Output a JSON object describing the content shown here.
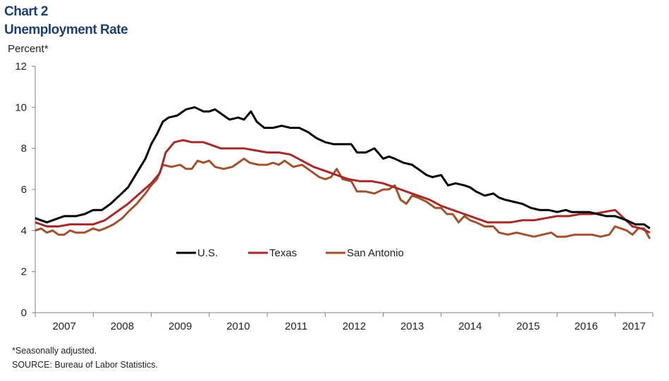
{
  "header": {
    "chart_label": "Chart 2",
    "chart_title": "Unemployment Rate"
  },
  "footer": {
    "note": "*Seasonally adjusted.",
    "source": "SOURCE: Bureau of Labor Statistics."
  },
  "chart_data": {
    "type": "line",
    "title": "Unemployment Rate",
    "ylabel": "Percent*",
    "xlabel": "",
    "ylim": [
      0,
      12
    ],
    "yticks": [
      0,
      2,
      4,
      6,
      8,
      10,
      12
    ],
    "xlim": [
      2007.0,
      2017.65
    ],
    "xtick_labels": [
      "2007",
      "2008",
      "2009",
      "2010",
      "2011",
      "2012",
      "2013",
      "2014",
      "2015",
      "2016",
      "2017"
    ],
    "grid": false,
    "legend_position": "center",
    "series": [
      {
        "name": "U.S.",
        "color": "#000000",
        "points": [
          [
            2007.0,
            4.6
          ],
          [
            2007.1,
            4.5
          ],
          [
            2007.2,
            4.4
          ],
          [
            2007.3,
            4.5
          ],
          [
            2007.4,
            4.6
          ],
          [
            2007.5,
            4.7
          ],
          [
            2007.6,
            4.7
          ],
          [
            2007.7,
            4.7
          ],
          [
            2007.85,
            4.8
          ],
          [
            2008.0,
            5.0
          ],
          [
            2008.15,
            5.0
          ],
          [
            2008.3,
            5.3
          ],
          [
            2008.45,
            5.7
          ],
          [
            2008.6,
            6.1
          ],
          [
            2008.75,
            6.8
          ],
          [
            2008.9,
            7.5
          ],
          [
            2009.0,
            8.2
          ],
          [
            2009.1,
            8.7
          ],
          [
            2009.2,
            9.3
          ],
          [
            2009.3,
            9.5
          ],
          [
            2009.45,
            9.6
          ],
          [
            2009.6,
            9.9
          ],
          [
            2009.75,
            10.0
          ],
          [
            2009.9,
            9.8
          ],
          [
            2010.0,
            9.8
          ],
          [
            2010.1,
            9.9
          ],
          [
            2010.2,
            9.7
          ],
          [
            2010.35,
            9.4
          ],
          [
            2010.5,
            9.5
          ],
          [
            2010.6,
            9.4
          ],
          [
            2010.72,
            9.8
          ],
          [
            2010.82,
            9.3
          ],
          [
            2010.95,
            9.0
          ],
          [
            2011.1,
            9.0
          ],
          [
            2011.25,
            9.1
          ],
          [
            2011.4,
            9.0
          ],
          [
            2011.55,
            9.0
          ],
          [
            2011.7,
            8.8
          ],
          [
            2011.85,
            8.5
          ],
          [
            2012.0,
            8.3
          ],
          [
            2012.15,
            8.2
          ],
          [
            2012.3,
            8.2
          ],
          [
            2012.45,
            8.2
          ],
          [
            2012.55,
            7.8
          ],
          [
            2012.7,
            7.8
          ],
          [
            2012.85,
            8.0
          ],
          [
            2013.0,
            7.5
          ],
          [
            2013.1,
            7.6
          ],
          [
            2013.2,
            7.5
          ],
          [
            2013.35,
            7.3
          ],
          [
            2013.5,
            7.2
          ],
          [
            2013.6,
            7.0
          ],
          [
            2013.75,
            6.7
          ],
          [
            2013.85,
            6.6
          ],
          [
            2014.0,
            6.7
          ],
          [
            2014.12,
            6.2
          ],
          [
            2014.25,
            6.3
          ],
          [
            2014.4,
            6.2
          ],
          [
            2014.5,
            6.1
          ],
          [
            2014.6,
            5.9
          ],
          [
            2014.75,
            5.7
          ],
          [
            2014.9,
            5.8
          ],
          [
            2015.0,
            5.6
          ],
          [
            2015.1,
            5.5
          ],
          [
            2015.25,
            5.4
          ],
          [
            2015.4,
            5.3
          ],
          [
            2015.55,
            5.1
          ],
          [
            2015.7,
            5.0
          ],
          [
            2015.85,
            5.0
          ],
          [
            2016.0,
            4.9
          ],
          [
            2016.15,
            5.0
          ],
          [
            2016.25,
            4.9
          ],
          [
            2016.4,
            4.9
          ],
          [
            2016.55,
            4.9
          ],
          [
            2016.7,
            4.8
          ],
          [
            2016.85,
            4.7
          ],
          [
            2017.0,
            4.7
          ],
          [
            2017.1,
            4.6
          ],
          [
            2017.2,
            4.5
          ],
          [
            2017.35,
            4.3
          ],
          [
            2017.5,
            4.3
          ],
          [
            2017.6,
            4.1
          ]
        ]
      },
      {
        "name": "Texas",
        "color": "#a52a2a",
        "points": [
          [
            2007.0,
            4.4
          ],
          [
            2007.2,
            4.2
          ],
          [
            2007.4,
            4.2
          ],
          [
            2007.6,
            4.3
          ],
          [
            2007.8,
            4.3
          ],
          [
            2008.0,
            4.3
          ],
          [
            2008.2,
            4.5
          ],
          [
            2008.4,
            4.9
          ],
          [
            2008.6,
            5.3
          ],
          [
            2008.8,
            5.8
          ],
          [
            2009.0,
            6.3
          ],
          [
            2009.15,
            6.8
          ],
          [
            2009.25,
            7.8
          ],
          [
            2009.4,
            8.3
          ],
          [
            2009.55,
            8.4
          ],
          [
            2009.7,
            8.3
          ],
          [
            2009.9,
            8.3
          ],
          [
            2010.0,
            8.2
          ],
          [
            2010.2,
            8.0
          ],
          [
            2010.4,
            8.0
          ],
          [
            2010.6,
            8.0
          ],
          [
            2010.8,
            7.9
          ],
          [
            2011.0,
            7.8
          ],
          [
            2011.2,
            7.8
          ],
          [
            2011.4,
            7.7
          ],
          [
            2011.6,
            7.4
          ],
          [
            2011.8,
            7.1
          ],
          [
            2012.0,
            6.9
          ],
          [
            2012.2,
            6.7
          ],
          [
            2012.4,
            6.5
          ],
          [
            2012.6,
            6.4
          ],
          [
            2012.8,
            6.4
          ],
          [
            2013.0,
            6.3
          ],
          [
            2013.2,
            6.1
          ],
          [
            2013.4,
            5.9
          ],
          [
            2013.6,
            5.7
          ],
          [
            2013.8,
            5.5
          ],
          [
            2014.0,
            5.2
          ],
          [
            2014.2,
            5.0
          ],
          [
            2014.4,
            4.8
          ],
          [
            2014.6,
            4.6
          ],
          [
            2014.8,
            4.4
          ],
          [
            2015.0,
            4.4
          ],
          [
            2015.2,
            4.4
          ],
          [
            2015.4,
            4.5
          ],
          [
            2015.6,
            4.5
          ],
          [
            2015.8,
            4.6
          ],
          [
            2016.0,
            4.7
          ],
          [
            2016.2,
            4.7
          ],
          [
            2016.4,
            4.8
          ],
          [
            2016.6,
            4.8
          ],
          [
            2016.8,
            4.9
          ],
          [
            2017.0,
            5.0
          ],
          [
            2017.15,
            4.6
          ],
          [
            2017.3,
            4.2
          ],
          [
            2017.45,
            4.1
          ],
          [
            2017.6,
            3.9
          ]
        ]
      },
      {
        "name": "San Antonio",
        "color": "#a0522d",
        "points": [
          [
            2007.0,
            4.0
          ],
          [
            2007.1,
            4.1
          ],
          [
            2007.2,
            3.9
          ],
          [
            2007.3,
            4.0
          ],
          [
            2007.4,
            3.8
          ],
          [
            2007.5,
            3.8
          ],
          [
            2007.6,
            4.0
          ],
          [
            2007.7,
            3.9
          ],
          [
            2007.85,
            3.9
          ],
          [
            2008.0,
            4.1
          ],
          [
            2008.1,
            4.0
          ],
          [
            2008.2,
            4.1
          ],
          [
            2008.35,
            4.3
          ],
          [
            2008.5,
            4.6
          ],
          [
            2008.6,
            4.9
          ],
          [
            2008.75,
            5.3
          ],
          [
            2008.9,
            5.8
          ],
          [
            2009.0,
            6.2
          ],
          [
            2009.1,
            6.5
          ],
          [
            2009.2,
            7.2
          ],
          [
            2009.35,
            7.1
          ],
          [
            2009.5,
            7.2
          ],
          [
            2009.6,
            7.0
          ],
          [
            2009.7,
            7.0
          ],
          [
            2009.8,
            7.4
          ],
          [
            2009.9,
            7.3
          ],
          [
            2010.0,
            7.4
          ],
          [
            2010.1,
            7.1
          ],
          [
            2010.25,
            7.0
          ],
          [
            2010.4,
            7.1
          ],
          [
            2010.5,
            7.3
          ],
          [
            2010.6,
            7.5
          ],
          [
            2010.7,
            7.3
          ],
          [
            2010.85,
            7.2
          ],
          [
            2011.0,
            7.2
          ],
          [
            2011.1,
            7.3
          ],
          [
            2011.2,
            7.2
          ],
          [
            2011.3,
            7.4
          ],
          [
            2011.45,
            7.1
          ],
          [
            2011.6,
            7.2
          ],
          [
            2011.75,
            6.9
          ],
          [
            2011.9,
            6.6
          ],
          [
            2012.0,
            6.5
          ],
          [
            2012.1,
            6.6
          ],
          [
            2012.2,
            7.0
          ],
          [
            2012.3,
            6.5
          ],
          [
            2012.45,
            6.4
          ],
          [
            2012.55,
            5.9
          ],
          [
            2012.7,
            5.9
          ],
          [
            2012.85,
            5.8
          ],
          [
            2013.0,
            6.0
          ],
          [
            2013.1,
            6.0
          ],
          [
            2013.2,
            6.2
          ],
          [
            2013.3,
            5.5
          ],
          [
            2013.4,
            5.3
          ],
          [
            2013.5,
            5.7
          ],
          [
            2013.6,
            5.6
          ],
          [
            2013.75,
            5.4
          ],
          [
            2013.9,
            5.1
          ],
          [
            2014.0,
            5.1
          ],
          [
            2014.1,
            4.8
          ],
          [
            2014.2,
            4.8
          ],
          [
            2014.3,
            4.4
          ],
          [
            2014.4,
            4.7
          ],
          [
            2014.5,
            4.5
          ],
          [
            2014.6,
            4.4
          ],
          [
            2014.75,
            4.2
          ],
          [
            2014.9,
            4.2
          ],
          [
            2015.0,
            3.9
          ],
          [
            2015.15,
            3.8
          ],
          [
            2015.3,
            3.9
          ],
          [
            2015.45,
            3.8
          ],
          [
            2015.6,
            3.7
          ],
          [
            2015.75,
            3.8
          ],
          [
            2015.9,
            3.9
          ],
          [
            2016.0,
            3.7
          ],
          [
            2016.15,
            3.7
          ],
          [
            2016.3,
            3.8
          ],
          [
            2016.45,
            3.8
          ],
          [
            2016.6,
            3.8
          ],
          [
            2016.75,
            3.7
          ],
          [
            2016.9,
            3.8
          ],
          [
            2017.0,
            4.2
          ],
          [
            2017.1,
            4.1
          ],
          [
            2017.2,
            4.0
          ],
          [
            2017.3,
            3.8
          ],
          [
            2017.4,
            4.1
          ],
          [
            2017.5,
            4.1
          ],
          [
            2017.6,
            3.6
          ]
        ]
      }
    ]
  }
}
